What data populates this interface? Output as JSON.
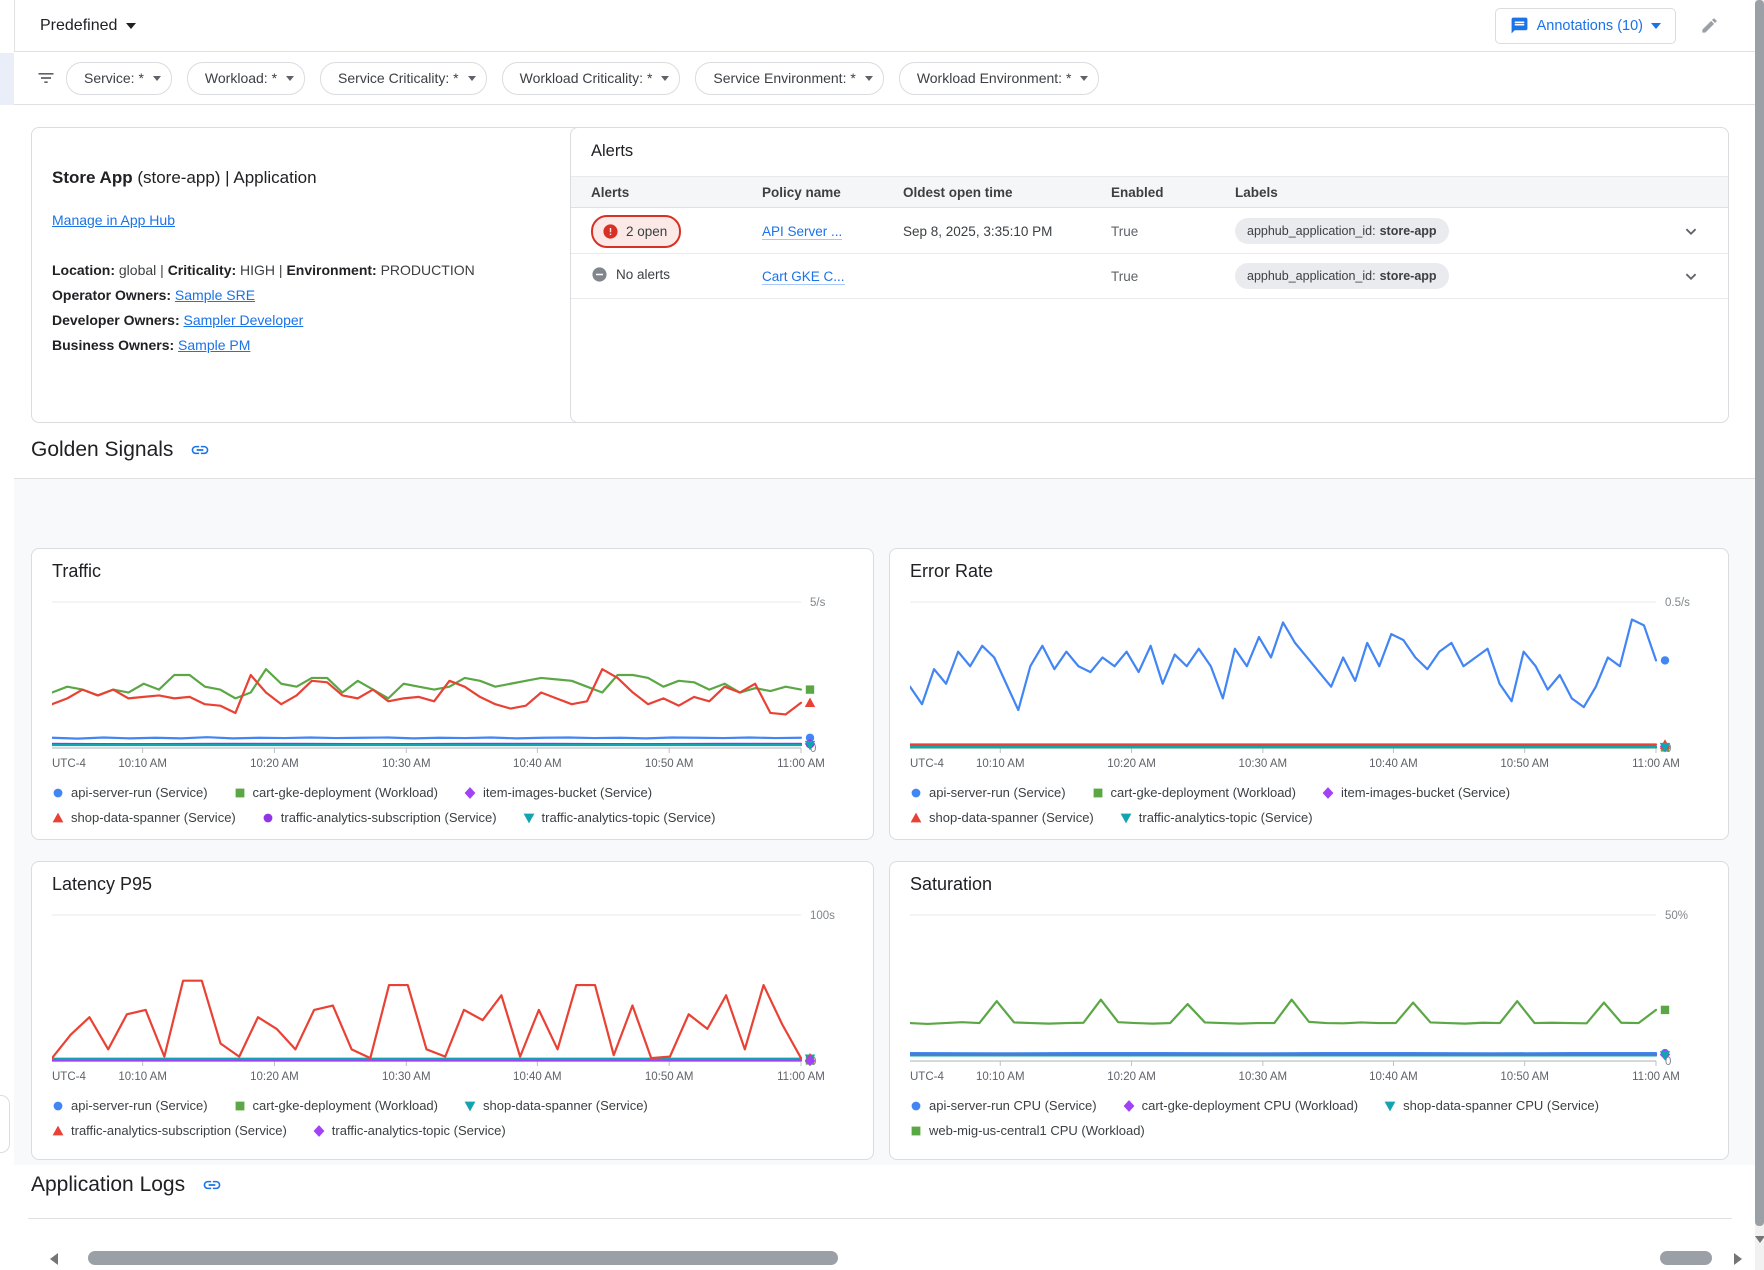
{
  "topbar": {
    "predefined": "Predefined",
    "annotations": "Annotations (10)"
  },
  "filterbar": {
    "chips": [
      "Service: *",
      "Workload: *",
      "Service Criticality: *",
      "Workload Criticality: *",
      "Service Environment: *",
      "Workload Environment: *"
    ]
  },
  "app_card": {
    "title_bold": "Store App",
    "title_rest": " (store-app) | Application",
    "manage_link": "Manage in App Hub",
    "meta": [
      [
        "Location:",
        "global"
      ],
      [
        "Criticality:",
        "HIGH"
      ],
      [
        "Environment:",
        "PRODUCTION"
      ]
    ],
    "meta_separator": " | ",
    "owners": [
      [
        "Operator Owners:",
        "Sample SRE"
      ],
      [
        "Developer Owners:",
        "Sampler Developer"
      ],
      [
        "Business Owners:",
        "Sample PM"
      ]
    ]
  },
  "alerts_card": {
    "title": "Alerts",
    "columns": [
      "Alerts",
      "Policy name",
      "Oldest open time",
      "Enabled",
      "Labels"
    ],
    "rows": [
      {
        "status": "2 open",
        "status_type": "open",
        "policy": "API Server ...",
        "oldest_open_time": "Sep 8, 2025, 3:35:10 PM",
        "enabled": "True",
        "label_key": "apphub_application_id:",
        "label_value": "store-app"
      },
      {
        "status": "No alerts",
        "status_type": "none",
        "policy": "Cart GKE C...",
        "oldest_open_time": "",
        "enabled": "True",
        "label_key": "apphub_application_id:",
        "label_value": "store-app"
      }
    ]
  },
  "sections": {
    "golden_signals": "Golden Signals",
    "application_logs": "Application Logs"
  },
  "icons": {
    "annotations": "comment-bubble",
    "edit": "pencil",
    "filter": "filter-list",
    "section_link": "chain-link",
    "alert_open": "error-circle",
    "no_alerts": "minus-circle",
    "row_expand": "chevron-down",
    "dropdown": "triangle-down"
  },
  "colors": {
    "primary_blue": "#1a73e8",
    "series_blue": "#4285f4",
    "series_green": "#5ba746",
    "series_red": "#e94235",
    "series_purple": "#a142f4",
    "series_violet": "#9334e6",
    "series_teal": "#12a4af",
    "alert_red": "#d93025",
    "canvas_grey": "#f8f9fa",
    "border_grey": "#dadce0"
  },
  "chart_data": [
    {
      "type": "line",
      "title": "Traffic",
      "ylim": [
        0,
        5
      ],
      "ymax_label": "5/s",
      "y0_label": "0",
      "grid": "top-and-baseline",
      "x_ticks": [
        "UTC-4",
        "10:10 AM",
        "10:20 AM",
        "10:30 AM",
        "10:40 AM",
        "10:50 AM",
        "11:00 AM"
      ],
      "legend_position": "bottom",
      "series": [
        {
          "name": "api-server-run (Service)",
          "marker": "circle",
          "color": "#4285f4",
          "values": [
            0.35,
            0.32,
            0.36,
            0.33,
            0.35,
            0.33,
            0.37,
            0.33,
            0.35,
            0.34,
            0.36,
            0.34,
            0.35,
            0.36,
            0.33,
            0.35,
            0.34,
            0.36,
            0.33,
            0.35,
            0.36,
            0.34,
            0.35,
            0.33,
            0.36,
            0.35,
            0.34,
            0.36,
            0.34,
            0.35
          ]
        },
        {
          "name": "cart-gke-deployment (Workload)",
          "marker": "square",
          "color": "#5ba746",
          "values": [
            1.9,
            2.1,
            2.0,
            1.8,
            2.0,
            1.9,
            2.2,
            2.0,
            2.5,
            2.5,
            2.1,
            2.0,
            1.7,
            1.9,
            2.7,
            2.2,
            2.1,
            2.4,
            2.4,
            1.9,
            2.3,
            2.0,
            1.7,
            2.2,
            2.1,
            2.0,
            2.1,
            2.4,
            2.3,
            2.1,
            2.2,
            2.3,
            2.4,
            2.35,
            2.3,
            2.1,
            1.9,
            2.5,
            2.5,
            2.4,
            2.1,
            2.3,
            2.25,
            2.0,
            2.2,
            1.9,
            2.05,
            1.95,
            2.1,
            2.0
          ]
        },
        {
          "name": "item-images-bucket (Service)",
          "marker": "diamond",
          "color": "#a142f4",
          "values": [
            0.14,
            0.13,
            0.14,
            0.14,
            0.13,
            0.14,
            0.14,
            0.13,
            0.14,
            0.14
          ]
        },
        {
          "name": "shop-data-spanner (Service)",
          "marker": "triangle-up",
          "color": "#e94235",
          "values": [
            1.5,
            1.7,
            2.0,
            1.8,
            2.0,
            1.7,
            1.75,
            1.8,
            1.7,
            1.75,
            1.5,
            1.45,
            1.2,
            2.5,
            1.9,
            1.5,
            1.8,
            2.3,
            2.25,
            1.8,
            1.7,
            2.0,
            1.6,
            1.7,
            1.75,
            1.6,
            2.3,
            2.1,
            1.75,
            1.5,
            1.35,
            1.45,
            1.9,
            1.7,
            1.5,
            1.6,
            2.7,
            2.4,
            1.9,
            1.5,
            1.7,
            1.45,
            1.75,
            1.6,
            2.1,
            1.9,
            2.2,
            1.2,
            1.15,
            1.55
          ]
        },
        {
          "name": "traffic-analytics-subscription (Service)",
          "marker": "circle",
          "color": "#9334e6",
          "values": [
            0.13,
            0.13
          ]
        },
        {
          "name": "traffic-analytics-topic (Service)",
          "marker": "triangle-down",
          "color": "#12a4af",
          "values": [
            0.1,
            0.1
          ]
        }
      ]
    },
    {
      "type": "line",
      "title": "Error Rate",
      "ylim": [
        0,
        0.5
      ],
      "ymax_label": "0.5/s",
      "y0_label": "0",
      "grid": "top-and-baseline",
      "x_ticks": [
        "UTC-4",
        "10:10 AM",
        "10:20 AM",
        "10:30 AM",
        "10:40 AM",
        "10:50 AM",
        "11:00 AM"
      ],
      "legend_position": "bottom",
      "series": [
        {
          "name": "api-server-run (Service)",
          "marker": "circle",
          "color": "#4285f4",
          "values": [
            0.21,
            0.15,
            0.27,
            0.22,
            0.33,
            0.28,
            0.35,
            0.31,
            0.22,
            0.13,
            0.28,
            0.35,
            0.27,
            0.33,
            0.28,
            0.26,
            0.31,
            0.28,
            0.33,
            0.26,
            0.35,
            0.22,
            0.32,
            0.28,
            0.34,
            0.28,
            0.17,
            0.34,
            0.28,
            0.38,
            0.31,
            0.43,
            0.36,
            0.31,
            0.26,
            0.21,
            0.31,
            0.23,
            0.36,
            0.28,
            0.39,
            0.37,
            0.31,
            0.27,
            0.33,
            0.36,
            0.28,
            0.31,
            0.34,
            0.22,
            0.16,
            0.33,
            0.28,
            0.2,
            0.25,
            0.17,
            0.14,
            0.21,
            0.31,
            0.28,
            0.44,
            0.42,
            0.3
          ]
        },
        {
          "name": "cart-gke-deployment (Workload)",
          "marker": "square",
          "color": "#5ba746",
          "values": [
            0.002,
            0.002
          ]
        },
        {
          "name": "item-images-bucket (Service)",
          "marker": "diamond",
          "color": "#a142f4",
          "values": [
            0.005,
            0.005
          ]
        },
        {
          "name": "shop-data-spanner (Service)",
          "marker": "triangle-up",
          "color": "#e94235",
          "values": [
            0.012,
            0.012
          ]
        },
        {
          "name": "traffic-analytics-topic (Service)",
          "marker": "triangle-down",
          "color": "#12a4af",
          "values": [
            0.003,
            0.003
          ]
        }
      ]
    },
    {
      "type": "line",
      "title": "Latency P95",
      "ylim": [
        0,
        100
      ],
      "ymax_label": "100s",
      "y0_label": "0",
      "grid": "top-and-baseline",
      "x_ticks": [
        "UTC-4",
        "10:10 AM",
        "10:20 AM",
        "10:30 AM",
        "10:40 AM",
        "10:50 AM",
        "11:00 AM"
      ],
      "legend_position": "bottom",
      "series": [
        {
          "name": "api-server-run (Service)",
          "marker": "circle",
          "color": "#4285f4",
          "values": [
            0.8,
            0.8
          ]
        },
        {
          "name": "cart-gke-deployment (Workload)",
          "marker": "square",
          "color": "#5ba746",
          "values": [
            0.4,
            0.4
          ]
        },
        {
          "name": "shop-data-spanner (Service)",
          "marker": "triangle-down",
          "color": "#12a4af",
          "values": [
            1.6,
            1.6
          ]
        },
        {
          "name": "traffic-analytics-subscription (Service)",
          "marker": "triangle-up",
          "color": "#e94235",
          "values": [
            2,
            18,
            30,
            8,
            32,
            35,
            3,
            55,
            55,
            12,
            3,
            30,
            22,
            8,
            35,
            38,
            8,
            2,
            52,
            52,
            8,
            3,
            35,
            28,
            45,
            3,
            35,
            8,
            52,
            52,
            4,
            38,
            2,
            3,
            32,
            22,
            45,
            8,
            52,
            25,
            2
          ]
        },
        {
          "name": "traffic-analytics-topic (Service)",
          "marker": "diamond",
          "color": "#a142f4",
          "values": [
            0.3,
            0.3
          ]
        }
      ]
    },
    {
      "type": "line",
      "title": "Saturation",
      "ylim": [
        0,
        50
      ],
      "ymax_label": "50%",
      "y0_label": "0",
      "grid": "top-and-baseline",
      "x_ticks": [
        "UTC-4",
        "10:10 AM",
        "10:20 AM",
        "10:30 AM",
        "10:40 AM",
        "10:50 AM",
        "11:00 AM"
      ],
      "legend_position": "bottom",
      "series": [
        {
          "name": "api-server-run CPU (Service)",
          "marker": "circle",
          "color": "#4285f4",
          "values": [
            2.7,
            2.6,
            2.7,
            2.7,
            2.6,
            2.7,
            2.7,
            2.6,
            2.7,
            2.7
          ]
        },
        {
          "name": "cart-gke-deployment CPU (Workload)",
          "marker": "diamond",
          "color": "#a142f4",
          "values": [
            2.2,
            2.2
          ]
        },
        {
          "name": "shop-data-spanner CPU (Service)",
          "marker": "triangle-down",
          "color": "#12a4af",
          "values": [
            1.9,
            1.9
          ]
        },
        {
          "name": "web-mig-us-central1 CPU (Workload)",
          "marker": "square",
          "color": "#5ba746",
          "values": [
            13,
            12.7,
            13,
            13.3,
            13,
            20.5,
            13.2,
            13,
            12.8,
            13,
            13.1,
            21,
            13.3,
            13,
            12.8,
            13,
            19.5,
            13.2,
            13,
            12.8,
            13,
            13,
            21,
            13.4,
            13,
            12.9,
            13.2,
            13,
            13,
            20,
            13.2,
            13,
            12.8,
            13.1,
            13,
            20.5,
            13,
            13.1,
            13,
            12.9,
            20,
            13.1,
            13,
            17.5
          ]
        }
      ]
    }
  ]
}
